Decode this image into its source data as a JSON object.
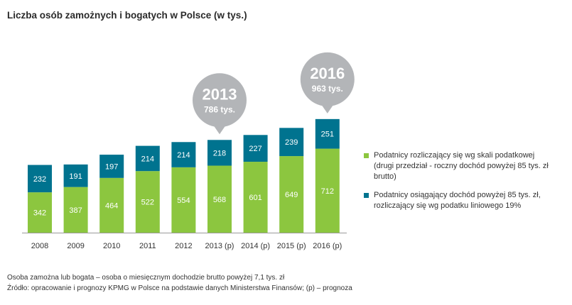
{
  "title": "Liczba osób zamożnych i bogatych w Polsce (w tys.)",
  "colors": {
    "green": "#8cc63f",
    "teal": "#00738f",
    "bubble": "#b3b5b8",
    "axis": "#9a9a9a"
  },
  "chart_data": {
    "type": "bar",
    "stacked": true,
    "categories": [
      "2008",
      "2009",
      "2010",
      "2011",
      "2012",
      "2013 (p)",
      "2014 (p)",
      "2015 (p)",
      "2016 (p)"
    ],
    "series": [
      {
        "name": "Podatnicy rozliczający się wg skali podatkowej (drugi przedział - roczny dochód powyżej 85 tys. zł brutto)",
        "color": "#8cc63f",
        "values": [
          342,
          387,
          464,
          522,
          554,
          568,
          601,
          649,
          712
        ]
      },
      {
        "name": "Podatnicy osiągający dochód powyżej 85 tys. zł, rozliczający się wg podatku liniowego 19%",
        "color": "#00738f",
        "values": [
          232,
          191,
          197,
          214,
          214,
          218,
          227,
          239,
          251
        ]
      }
    ],
    "annotations": [
      {
        "category": "2013 (p)",
        "year": "2013",
        "total_label": "786 tys."
      },
      {
        "category": "2016 (p)",
        "year": "2016",
        "total_label": "963 tys."
      }
    ],
    "ylim": [
      0,
      1000
    ],
    "xlabel": "",
    "ylabel": ""
  },
  "legend": {
    "item1": "Podatnicy rozliczający się wg skali podatkowej (drugi przedział - roczny dochód powyżej 85 tys. zł brutto)",
    "item2": "Podatnicy osiągający dochód powyżej 85 tys. zł, rozliczający się wg podatku liniowego 19%"
  },
  "notes": {
    "definition": "Osoba zamożna lub bogata – osoba o miesięcznym dochodzie brutto powyżej 7,1 tys. zł",
    "source": "Źródło: opracowanie i prognozy KPMG w Polsce na podstawie danych Ministerstwa Finansów; (p) – prognoza"
  }
}
